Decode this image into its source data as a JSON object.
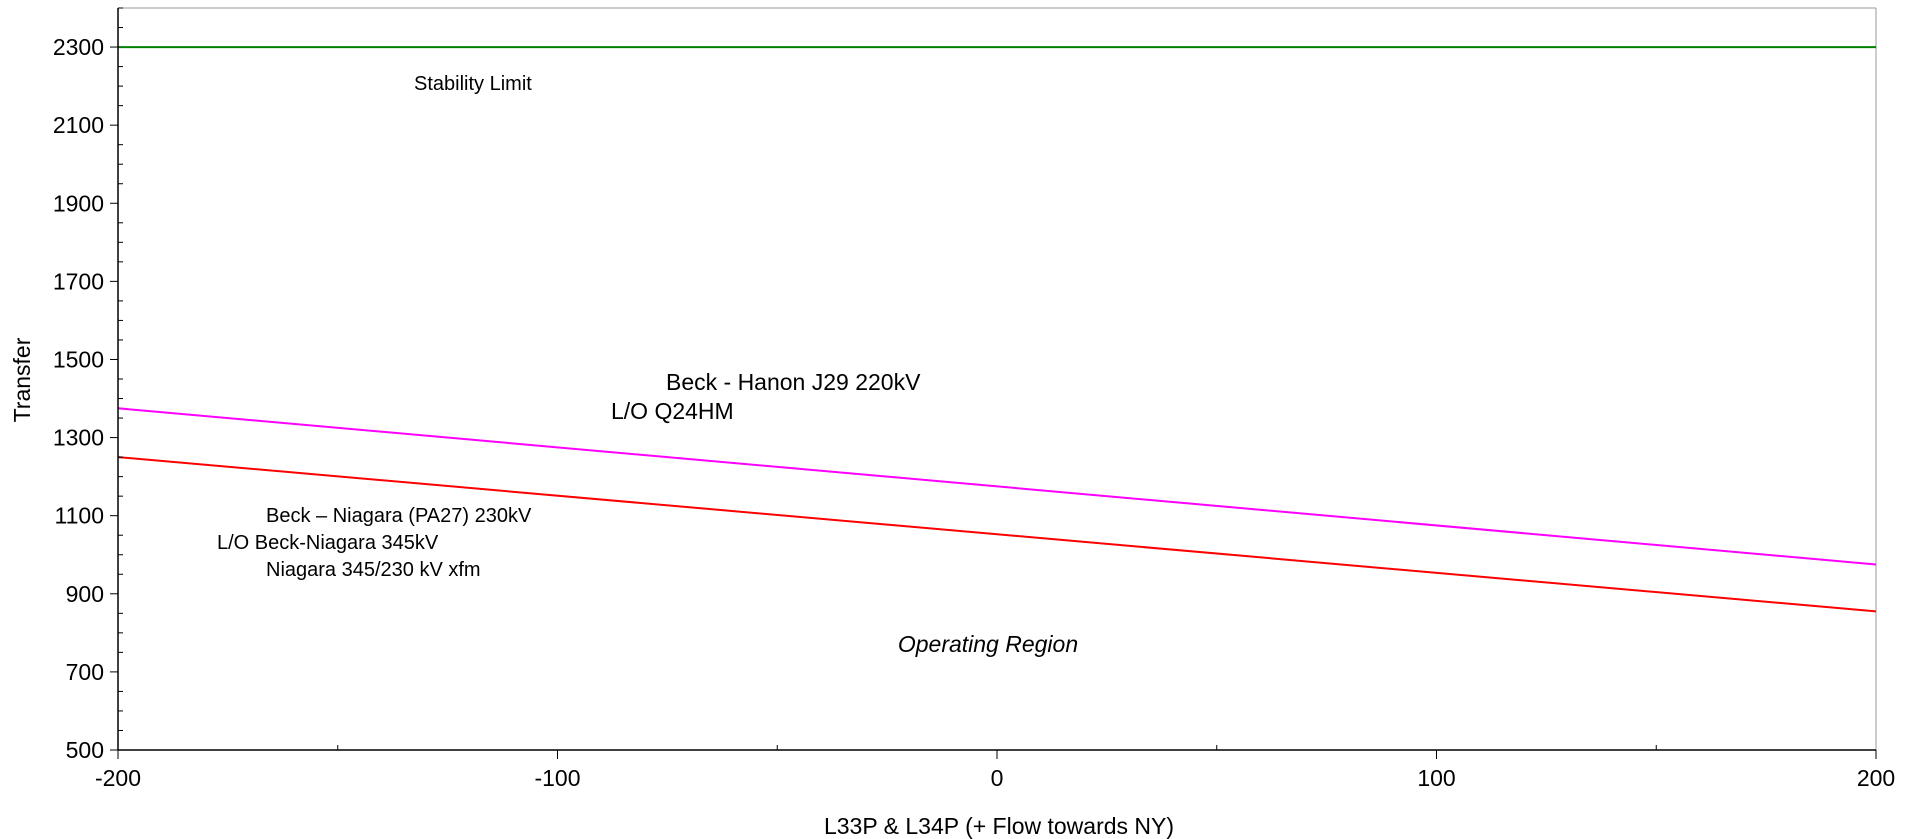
{
  "chart_data": {
    "type": "line",
    "title": "",
    "xlabel": "L33P & L34P (+ Flow towards NY)",
    "ylabel": "Transfer",
    "xlim": [
      -200,
      200
    ],
    "ylim": [
      500,
      2300
    ],
    "grid": false,
    "x_ticks": [
      -200,
      -100,
      0,
      100,
      200
    ],
    "y_ticks": [
      500,
      700,
      900,
      1100,
      1300,
      1500,
      1700,
      1900,
      2100,
      2300
    ],
    "series": [
      {
        "color": "#008000",
        "x": [
          -200,
          200
        ],
        "y": [
          2300,
          2300
        ]
      },
      {
        "color": "#ff00ff",
        "x": [
          -200,
          200
        ],
        "y": [
          1375,
          975
        ]
      },
      {
        "color": "#ff0000",
        "x": [
          -200,
          200
        ],
        "y": [
          1250,
          855
        ]
      }
    ],
    "annotations": {
      "stability": "Stability Limit",
      "hanon_line1": "Beck - Hanon J29 220kV",
      "hanon_line2": "L/O  Q24HM",
      "niagara_line1": "Beck – Niagara (PA27) 230kV",
      "niagara_line2": "L/O  Beck-Niagara 345kV",
      "niagara_line3": "Niagara 345/230 kV xfm",
      "region": "Operating Region"
    }
  }
}
